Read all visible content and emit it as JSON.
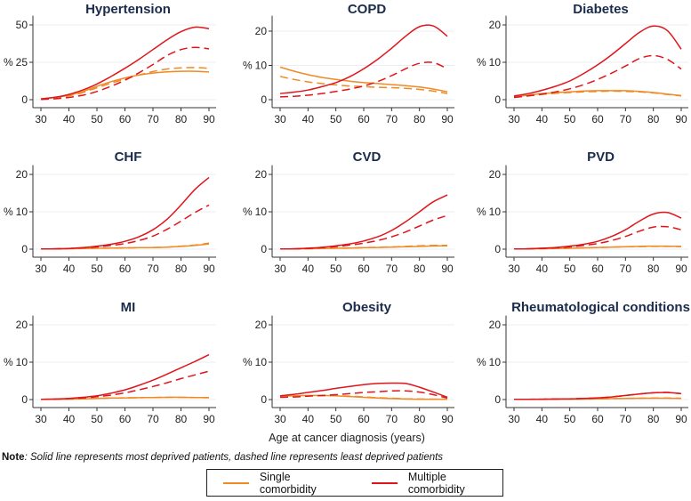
{
  "chart_data": {
    "type": "line",
    "xlabel": "Age at cancer diagnosis (years)",
    "ylabel": "%",
    "x_ticks": [
      30,
      40,
      50,
      60,
      70,
      80,
      90
    ],
    "x": [
      30,
      35,
      40,
      45,
      50,
      55,
      60,
      65,
      70,
      75,
      80,
      85,
      90
    ],
    "note_bold": "Note",
    "note_text": ": Solid line represents most deprived patients, dashed line represents least deprived patients",
    "legend": [
      {
        "label": "Single comorbidity",
        "color": "#f08a24"
      },
      {
        "label": "Multiple comorbidity",
        "color": "#e0151b"
      }
    ],
    "line_styles": {
      "most_deprived": "solid",
      "least_deprived": "dashed"
    },
    "panels": [
      {
        "title": "Hypertension",
        "ylim": [
          0,
          55
        ],
        "y_ticks": [
          0,
          25,
          50
        ],
        "series": [
          {
            "name": "Single comorbidity, most deprived",
            "group": "single",
            "style": "solid",
            "values": [
              0.5,
              1.5,
              3,
              5.5,
              9,
              12,
              14.5,
              16.5,
              17.8,
              18.6,
              19,
              19,
              18.5
            ]
          },
          {
            "name": "Single comorbidity, least deprived",
            "group": "single",
            "style": "dashed",
            "values": [
              0.3,
              1,
              2.5,
              4.8,
              8,
              11,
              13.8,
              16.5,
              18.8,
              20.5,
              21.3,
              21.5,
              21
            ]
          },
          {
            "name": "Multiple comorbidity, most deprived",
            "group": "multiple",
            "style": "solid",
            "values": [
              0.5,
              1.6,
              3.5,
              6.5,
              10.5,
              15.5,
              21,
              27,
              33.5,
              40,
              45.5,
              48.5,
              47.5
            ]
          },
          {
            "name": "Multiple comorbidity, least deprived",
            "group": "multiple",
            "style": "dashed",
            "values": [
              0.2,
              0.6,
              1.5,
              3,
              5.5,
              9,
              13,
              18,
              23.5,
              29.5,
              33.5,
              35,
              34
            ]
          }
        ]
      },
      {
        "title": "COPD",
        "ylim": [
          0,
          24
        ],
        "y_ticks": [
          0,
          10,
          20
        ],
        "series": [
          {
            "name": "Single comorbidity, most deprived",
            "group": "single",
            "style": "solid",
            "values": [
              9.5,
              8.3,
              7.3,
              6.5,
              5.9,
              5.4,
              5,
              4.7,
              4.4,
              4.1,
              3.7,
              3.1,
              2.3
            ]
          },
          {
            "name": "Single comorbidity, least deprived",
            "group": "single",
            "style": "dashed",
            "values": [
              6.8,
              5.9,
              5.2,
              4.7,
              4.3,
              4,
              3.8,
              3.6,
              3.5,
              3.3,
              3,
              2.5,
              1.8
            ]
          },
          {
            "name": "Multiple comorbidity, most deprived",
            "group": "multiple",
            "style": "solid",
            "values": [
              1.8,
              2.2,
              2.8,
              3.8,
              5,
              6.7,
              9,
              11.8,
              15,
              18.5,
              21.3,
              21.5,
              18.5
            ]
          },
          {
            "name": "Multiple comorbidity, least deprived",
            "group": "multiple",
            "style": "dashed",
            "values": [
              0.8,
              1,
              1.3,
              1.8,
              2.4,
              3.1,
              4,
              5.3,
              7,
              9,
              10.6,
              10.8,
              9
            ]
          }
        ]
      },
      {
        "title": "Diabetes",
        "ylim": [
          0,
          22
        ],
        "y_ticks": [
          0,
          10,
          20
        ],
        "series": [
          {
            "name": "Single comorbidity, most deprived",
            "group": "single",
            "style": "solid",
            "values": [
              0.8,
              1.2,
              1.6,
              1.9,
              2.1,
              2.3,
              2.4,
              2.4,
              2.4,
              2.2,
              1.9,
              1.5,
              1.1
            ]
          },
          {
            "name": "Single comorbidity, least deprived",
            "group": "single",
            "style": "dashed",
            "values": [
              0.6,
              1,
              1.4,
              1.7,
              1.9,
              2.1,
              2.2,
              2.3,
              2.2,
              2.1,
              1.8,
              1.4,
              1
            ]
          },
          {
            "name": "Multiple comorbidity, most deprived",
            "group": "multiple",
            "style": "solid",
            "values": [
              1,
              1.6,
              2.5,
              3.6,
              5,
              7,
              9.3,
              12,
              15,
              18,
              19.7,
              18.5,
              13.5
            ]
          },
          {
            "name": "Multiple comorbidity, least deprived",
            "group": "multiple",
            "style": "dashed",
            "values": [
              0.6,
              1,
              1.5,
              2.1,
              2.9,
              4,
              5.4,
              7.1,
              9,
              11,
              11.8,
              10.8,
              8.2
            ]
          }
        ]
      },
      {
        "title": "CHF",
        "ylim": [
          0,
          22
        ],
        "y_ticks": [
          0,
          10,
          20
        ],
        "series": [
          {
            "name": "Single comorbidity, most deprived",
            "group": "single",
            "style": "solid",
            "values": [
              0.05,
              0.08,
              0.12,
              0.18,
              0.25,
              0.3,
              0.35,
              0.4,
              0.45,
              0.55,
              0.75,
              1,
              1.4
            ]
          },
          {
            "name": "Single comorbidity, least deprived",
            "group": "single",
            "style": "dashed",
            "values": [
              0.05,
              0.08,
              0.12,
              0.18,
              0.25,
              0.3,
              0.35,
              0.4,
              0.45,
              0.55,
              0.8,
              1.1,
              1.6
            ]
          },
          {
            "name": "Multiple comorbidity, most deprived",
            "group": "multiple",
            "style": "solid",
            "values": [
              0.05,
              0.1,
              0.2,
              0.4,
              0.8,
              1.3,
              2.1,
              3.3,
              5.2,
              8,
              11.8,
              16,
              19.2
            ]
          },
          {
            "name": "Multiple comorbidity, least deprived",
            "group": "multiple",
            "style": "dashed",
            "values": [
              0.05,
              0.1,
              0.18,
              0.35,
              0.6,
              1,
              1.5,
              2.3,
              3.5,
              5.3,
              7.5,
              9.8,
              11.8
            ]
          }
        ]
      },
      {
        "title": "CVD",
        "ylim": [
          0,
          22
        ],
        "y_ticks": [
          0,
          10,
          20
        ],
        "series": [
          {
            "name": "Single comorbidity, most deprived",
            "group": "single",
            "style": "solid",
            "values": [
              0.05,
              0.08,
              0.12,
              0.18,
              0.25,
              0.3,
              0.4,
              0.45,
              0.55,
              0.65,
              0.75,
              0.85,
              0.9
            ]
          },
          {
            "name": "Single comorbidity, least deprived",
            "group": "single",
            "style": "dashed",
            "values": [
              0.05,
              0.08,
              0.12,
              0.18,
              0.25,
              0.3,
              0.4,
              0.5,
              0.6,
              0.75,
              0.9,
              1,
              1
            ]
          },
          {
            "name": "Multiple comorbidity, most deprived",
            "group": "multiple",
            "style": "solid",
            "values": [
              0.05,
              0.1,
              0.25,
              0.5,
              0.9,
              1.4,
              2.2,
              3.3,
              5,
              7.3,
              10,
              12.7,
              14.5
            ]
          },
          {
            "name": "Multiple comorbidity, least deprived",
            "group": "multiple",
            "style": "dashed",
            "values": [
              0.05,
              0.1,
              0.2,
              0.4,
              0.7,
              1.1,
              1.6,
              2.3,
              3.3,
              4.6,
              6.2,
              7.8,
              9
            ]
          }
        ]
      },
      {
        "title": "PVD",
        "ylim": [
          0,
          22
        ],
        "y_ticks": [
          0,
          10,
          20
        ],
        "series": [
          {
            "name": "Single comorbidity, most deprived",
            "group": "single",
            "style": "solid",
            "values": [
              0.05,
              0.08,
              0.12,
              0.18,
              0.25,
              0.35,
              0.45,
              0.55,
              0.65,
              0.75,
              0.8,
              0.8,
              0.75
            ]
          },
          {
            "name": "Single comorbidity, least deprived",
            "group": "single",
            "style": "dashed",
            "values": [
              0.05,
              0.08,
              0.12,
              0.18,
              0.25,
              0.35,
              0.45,
              0.55,
              0.65,
              0.7,
              0.75,
              0.75,
              0.7
            ]
          },
          {
            "name": "Multiple comorbidity, most deprived",
            "group": "multiple",
            "style": "solid",
            "values": [
              0.05,
              0.1,
              0.25,
              0.45,
              0.8,
              1.3,
              2.1,
              3.4,
              5.2,
              7.5,
              9.4,
              9.8,
              8.3
            ]
          },
          {
            "name": "Multiple comorbidity, least deprived",
            "group": "multiple",
            "style": "dashed",
            "values": [
              0.05,
              0.1,
              0.2,
              0.35,
              0.6,
              1,
              1.5,
              2.3,
              3.4,
              4.8,
              5.9,
              6,
              5.2
            ]
          }
        ]
      },
      {
        "title": "MI",
        "ylim": [
          0,
          22
        ],
        "y_ticks": [
          0,
          10,
          20
        ],
        "series": [
          {
            "name": "Single comorbidity, most deprived",
            "group": "single",
            "style": "solid",
            "values": [
              0.05,
              0.08,
              0.12,
              0.2,
              0.3,
              0.4,
              0.45,
              0.5,
              0.55,
              0.6,
              0.6,
              0.55,
              0.5
            ]
          },
          {
            "name": "Single comorbidity, least deprived",
            "group": "single",
            "style": "dashed",
            "values": [
              0.05,
              0.08,
              0.12,
              0.2,
              0.3,
              0.4,
              0.45,
              0.5,
              0.55,
              0.6,
              0.6,
              0.55,
              0.5
            ]
          },
          {
            "name": "Multiple comorbidity, most deprived",
            "group": "multiple",
            "style": "solid",
            "values": [
              0.05,
              0.15,
              0.3,
              0.6,
              1,
              1.7,
              2.6,
              3.8,
              5.2,
              6.8,
              8.5,
              10.2,
              12
            ]
          },
          {
            "name": "Multiple comorbidity, least deprived",
            "group": "multiple",
            "style": "dashed",
            "values": [
              0.05,
              0.12,
              0.25,
              0.45,
              0.75,
              1.2,
              1.8,
              2.6,
              3.5,
              4.5,
              5.6,
              6.6,
              7.6
            ]
          }
        ]
      },
      {
        "title": "Obesity",
        "ylim": [
          0,
          22
        ],
        "y_ticks": [
          0,
          10,
          20
        ],
        "series": [
          {
            "name": "Single comorbidity, most deprived",
            "group": "single",
            "style": "solid",
            "values": [
              0.9,
              1,
              1.1,
              1.1,
              1,
              0.8,
              0.6,
              0.4,
              0.25,
              0.15,
              0.1,
              0.1,
              0.1
            ]
          },
          {
            "name": "Single comorbidity, least deprived",
            "group": "single",
            "style": "dashed",
            "values": [
              0.7,
              0.9,
              1,
              1,
              1,
              0.9,
              0.7,
              0.5,
              0.35,
              0.2,
              0.15,
              0.1,
              0.1
            ]
          },
          {
            "name": "Multiple comorbidity, most deprived",
            "group": "multiple",
            "style": "solid",
            "values": [
              1,
              1.4,
              1.9,
              2.4,
              3,
              3.5,
              4,
              4.3,
              4.4,
              4.3,
              3.3,
              2,
              0.6
            ]
          },
          {
            "name": "Multiple comorbidity, least deprived",
            "group": "multiple",
            "style": "dashed",
            "values": [
              0.6,
              0.7,
              0.9,
              1.1,
              1.3,
              1.6,
              1.9,
              2.1,
              2.3,
              2.3,
              2,
              1.3,
              0.4
            ]
          }
        ]
      },
      {
        "title": "Rheumatological conditions",
        "ylim": [
          0,
          22
        ],
        "y_ticks": [
          0,
          10,
          20
        ],
        "series": [
          {
            "name": "Single comorbidity, most deprived",
            "group": "single",
            "style": "solid",
            "values": [
              0.05,
              0.06,
              0.08,
              0.1,
              0.12,
              0.15,
              0.2,
              0.25,
              0.3,
              0.35,
              0.35,
              0.35,
              0.3
            ]
          },
          {
            "name": "Single comorbidity, least deprived",
            "group": "single",
            "style": "dashed",
            "values": [
              0.05,
              0.06,
              0.08,
              0.1,
              0.12,
              0.15,
              0.2,
              0.25,
              0.3,
              0.35,
              0.4,
              0.4,
              0.35
            ]
          },
          {
            "name": "Multiple comorbidity, most deprived",
            "group": "multiple",
            "style": "solid",
            "values": [
              0.05,
              0.07,
              0.1,
              0.15,
              0.2,
              0.3,
              0.45,
              0.7,
              1.1,
              1.5,
              1.8,
              1.9,
              1.6
            ]
          },
          {
            "name": "Multiple comorbidity, least deprived",
            "group": "multiple",
            "style": "dashed",
            "values": [
              0.05,
              0.07,
              0.1,
              0.15,
              0.2,
              0.3,
              0.45,
              0.7,
              1.1,
              1.5,
              1.8,
              1.9,
              1.6
            ]
          }
        ]
      }
    ]
  }
}
